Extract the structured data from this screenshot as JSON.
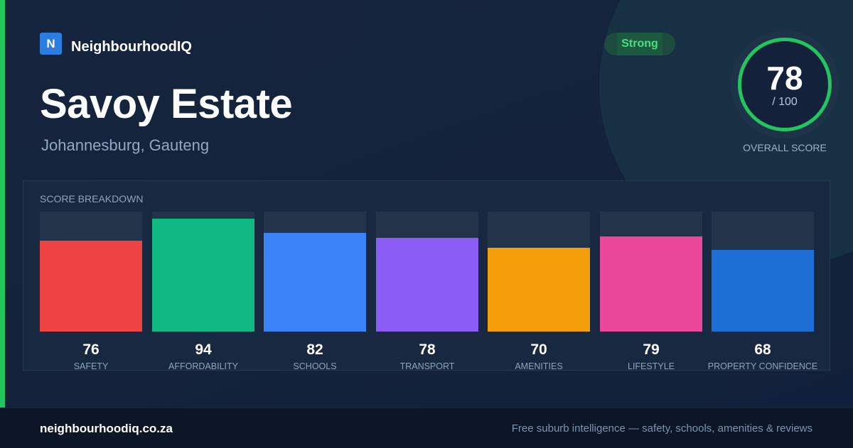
{
  "brand": {
    "logo_letter": "N",
    "name": "NeighbourhoodIQ"
  },
  "suburb": {
    "name": "Savoy Estate",
    "location": "Johannesburg, Gauteng"
  },
  "badge": {
    "label": "Strong"
  },
  "overall": {
    "score": "78",
    "max": "/ 100",
    "label": "OVERALL SCORE",
    "color": "#22c55e"
  },
  "breakdown": {
    "title": "SCORE BREAKDOWN",
    "items": [
      {
        "value": "76",
        "label": "SAFETY",
        "color": "#ef4444"
      },
      {
        "value": "94",
        "label": "AFFORDABILITY",
        "color": "#10b981"
      },
      {
        "value": "82",
        "label": "SCHOOLS",
        "color": "#3b82f6"
      },
      {
        "value": "78",
        "label": "TRANSPORT",
        "color": "#8b5cf6"
      },
      {
        "value": "70",
        "label": "AMENITIES",
        "color": "#f59e0b"
      },
      {
        "value": "79",
        "label": "LIFESTYLE",
        "color": "#ec4899"
      },
      {
        "value": "68",
        "label": "PROPERTY CONFIDENCE",
        "color": "#1d6fd6"
      }
    ]
  },
  "footer": {
    "domain": "neighbourhoodiq.co.za",
    "tagline": "Free suburb intelligence — safety, schools, amenities & reviews"
  }
}
